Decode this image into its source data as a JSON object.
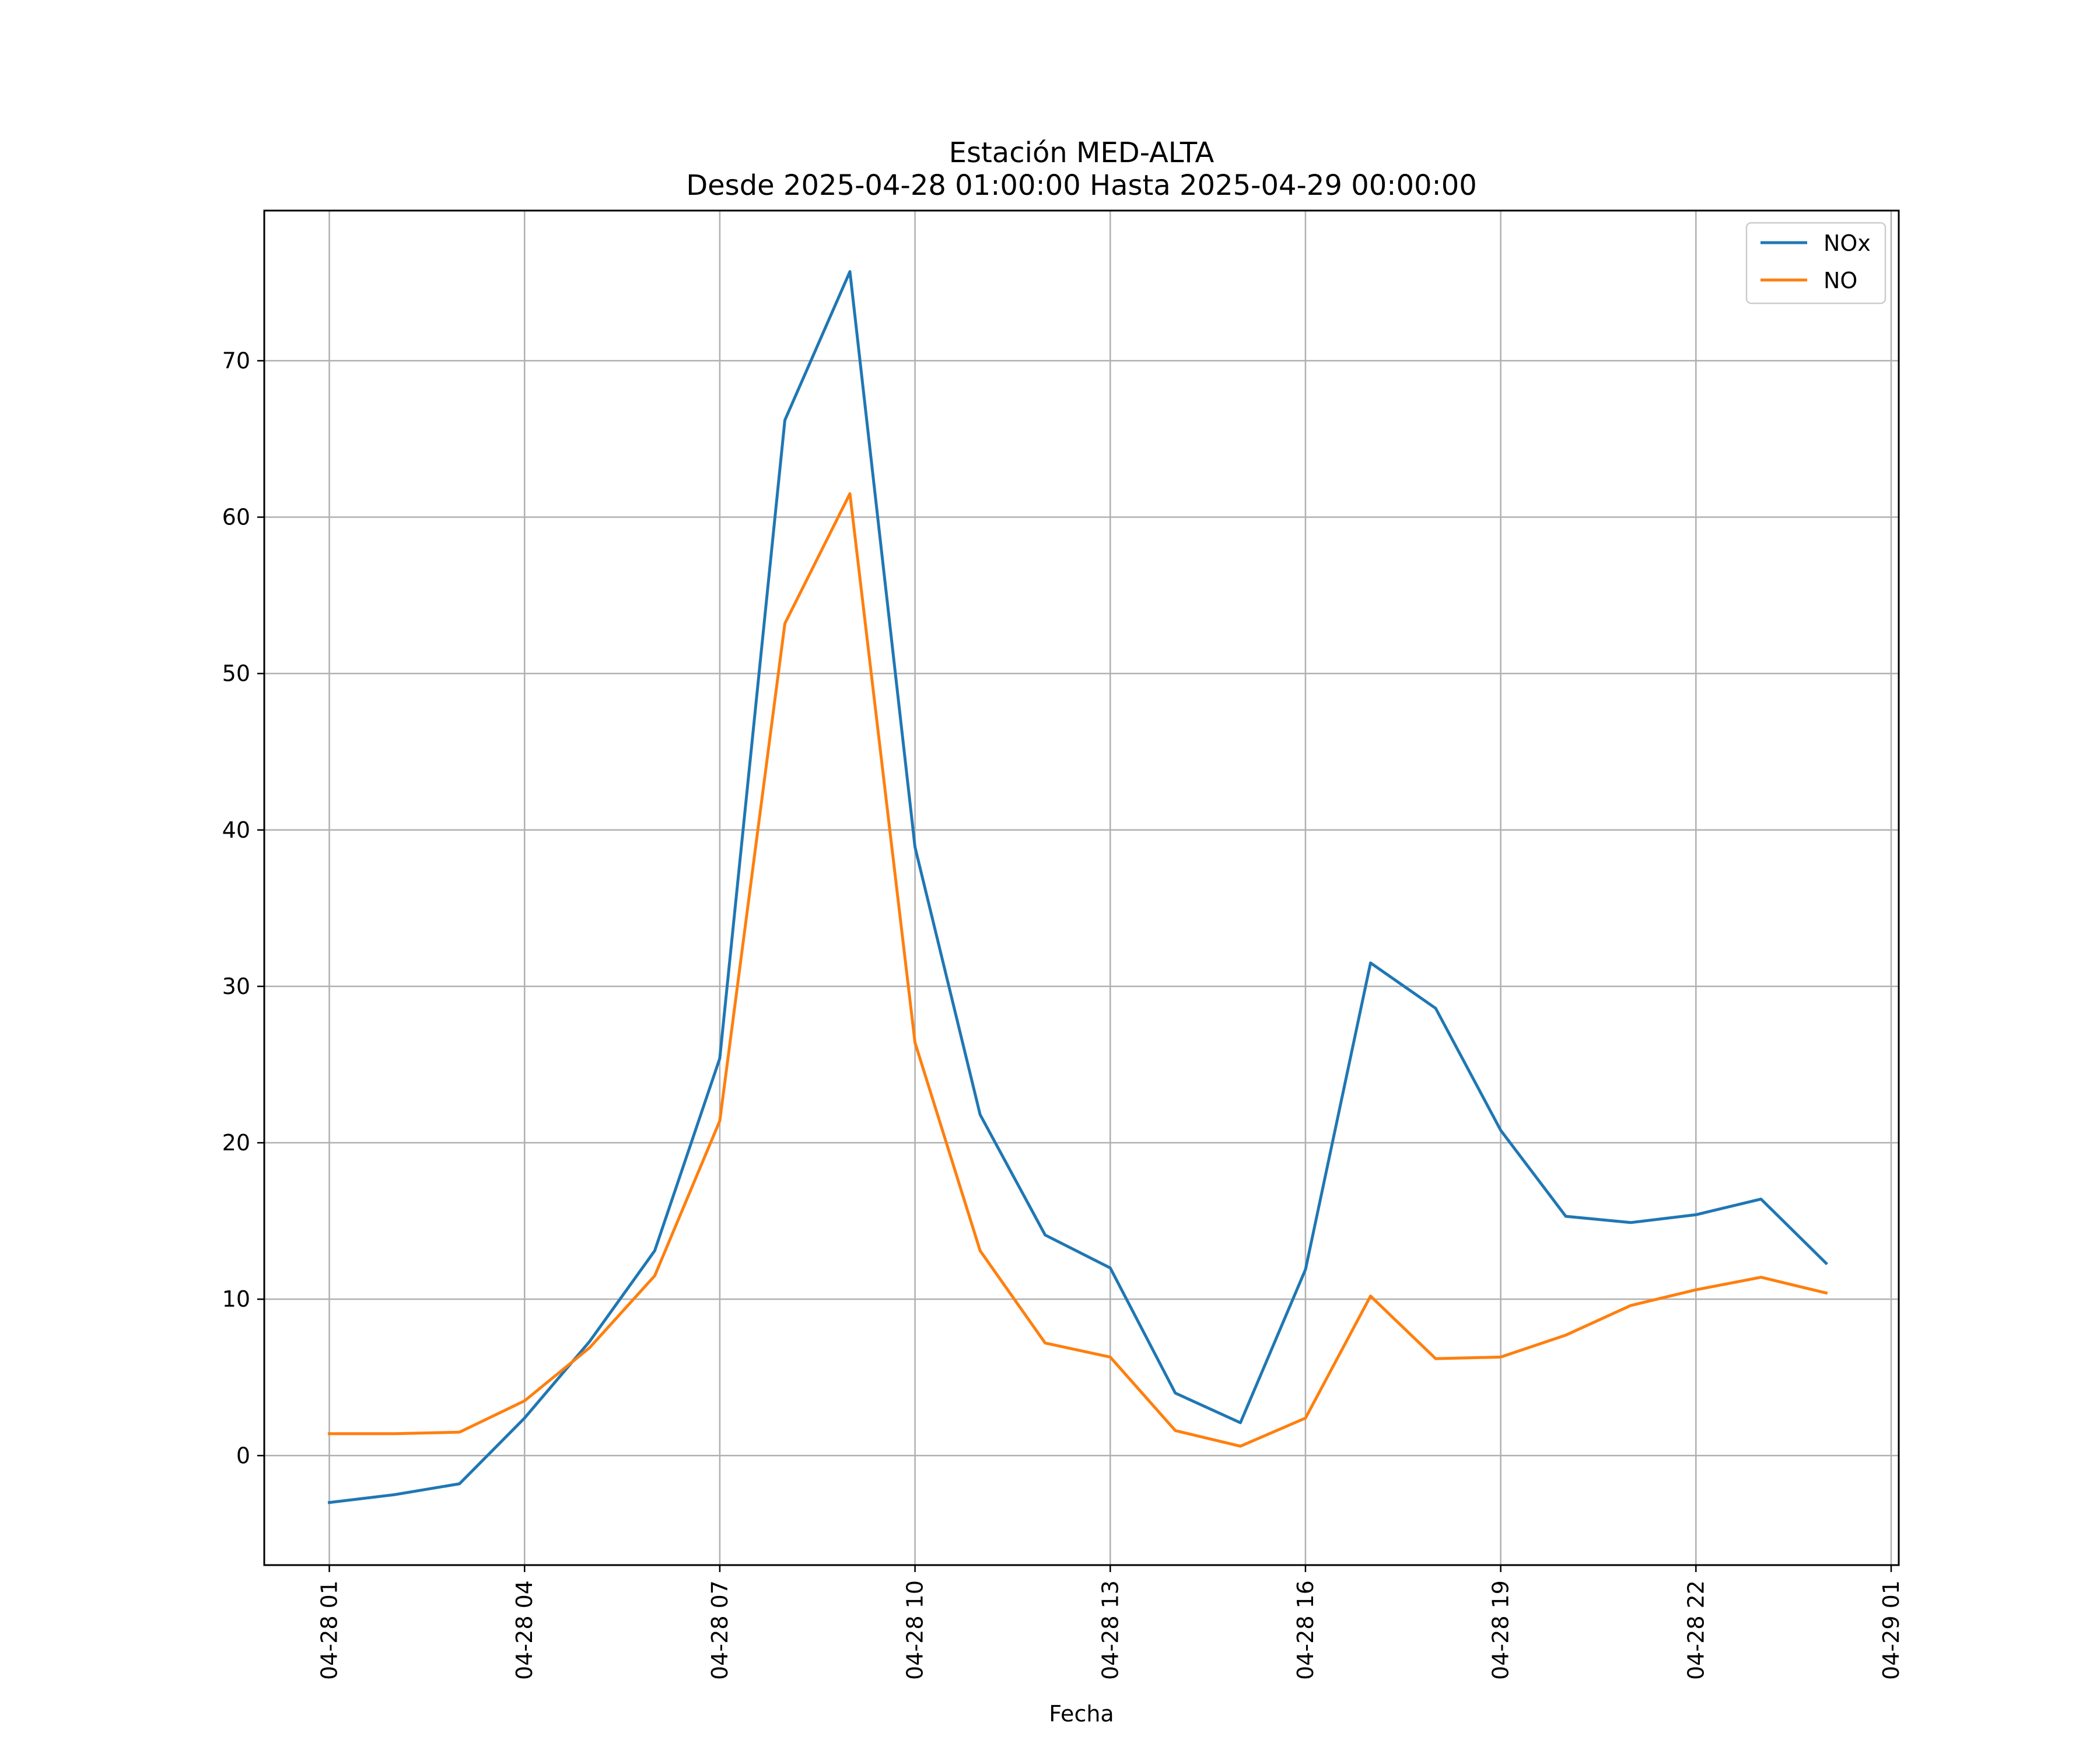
{
  "chart_data": {
    "type": "line",
    "title": "Estación MED-ALTA",
    "subtitle": "Desde 2025-04-28 01:00:00 Hasta 2025-04-29 00:00:00",
    "xlabel": "Fecha",
    "ylabel": "",
    "x": [
      "04-28 01",
      "04-28 02",
      "04-28 03",
      "04-28 04",
      "04-28 05",
      "04-28 06",
      "04-28 07",
      "04-28 08",
      "04-28 09",
      "04-28 10",
      "04-28 11",
      "04-28 12",
      "04-28 13",
      "04-28 14",
      "04-28 15",
      "04-28 16",
      "04-28 17",
      "04-28 18",
      "04-28 19",
      "04-28 20",
      "04-28 21",
      "04-28 22",
      "04-28 23",
      "04-29 00"
    ],
    "x_ticks": [
      "04-28 01",
      "04-28 04",
      "04-28 07",
      "04-28 10",
      "04-28 13",
      "04-28 16",
      "04-28 19",
      "04-28 22",
      "04-29 01"
    ],
    "xlim": [
      "04-28 00:00",
      "04-29 01:07"
    ],
    "y_ticks": [
      0,
      10,
      20,
      30,
      40,
      50,
      60,
      70
    ],
    "ylim": [
      -7,
      79.6
    ],
    "grid": true,
    "legend_position": "top-right",
    "series": [
      {
        "name": "NOx",
        "color": "#1f77b4",
        "values": [
          -3.0,
          -2.5,
          -1.8,
          2.4,
          7.3,
          13.1,
          25.4,
          66.2,
          75.7,
          38.9,
          21.8,
          14.1,
          12.0,
          4.0,
          2.1,
          11.9,
          31.5,
          28.6,
          20.8,
          15.3,
          14.9,
          15.4,
          16.4,
          12.3
        ]
      },
      {
        "name": "NO",
        "color": "#ff7f0e",
        "values": [
          1.4,
          1.4,
          1.5,
          3.5,
          6.9,
          11.5,
          21.4,
          53.2,
          61.5,
          26.4,
          13.1,
          7.2,
          6.3,
          1.6,
          0.6,
          2.4,
          10.2,
          6.2,
          6.3,
          7.7,
          9.6,
          10.6,
          11.4,
          10.4
        ]
      }
    ]
  }
}
